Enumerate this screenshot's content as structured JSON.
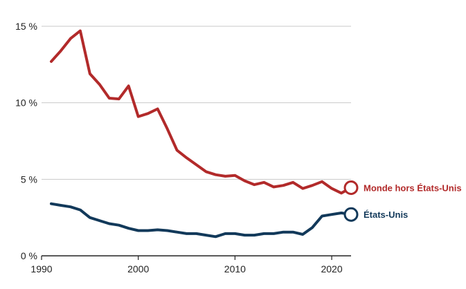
{
  "chart_data": {
    "type": "line",
    "xlim": [
      1990,
      2022
    ],
    "ylim": [
      0,
      15
    ],
    "xticks": [
      1990,
      2000,
      2010,
      2020
    ],
    "xtick_labels": [
      "1990",
      "2000",
      "2010",
      "2020"
    ],
    "yticks": [
      0,
      5,
      10,
      15
    ],
    "ytick_labels": [
      "0 %",
      "5 %",
      "10 %",
      "15 %"
    ],
    "grid": "horizontal",
    "legend": "end-of-line labels",
    "series": [
      {
        "name": "Monde hors États-Unis",
        "color": "#b22a2a",
        "x": [
          1991,
          1992,
          1993,
          1994,
          1995,
          1996,
          1997,
          1998,
          1999,
          2000,
          2001,
          2002,
          2003,
          2004,
          2005,
          2006,
          2007,
          2008,
          2009,
          2010,
          2011,
          2012,
          2013,
          2014,
          2015,
          2016,
          2017,
          2018,
          2019,
          2020,
          2021,
          2022
        ],
        "values": [
          12.7,
          13.4,
          14.2,
          14.7,
          11.9,
          11.2,
          10.3,
          10.25,
          11.1,
          9.1,
          9.3,
          9.6,
          8.3,
          6.9,
          6.4,
          5.95,
          5.5,
          5.3,
          5.2,
          5.25,
          4.9,
          4.65,
          4.8,
          4.5,
          4.6,
          4.8,
          4.4,
          4.6,
          4.85,
          4.4,
          4.1,
          4.45
        ]
      },
      {
        "name": "États-Unis",
        "color": "#12395a",
        "x": [
          1991,
          1992,
          1993,
          1994,
          1995,
          1996,
          1997,
          1998,
          1999,
          2000,
          2001,
          2002,
          2003,
          2004,
          2005,
          2006,
          2007,
          2008,
          2009,
          2010,
          2011,
          2012,
          2013,
          2014,
          2015,
          2016,
          2017,
          2018,
          2019,
          2020,
          2021,
          2022
        ],
        "values": [
          3.4,
          3.3,
          3.2,
          3.0,
          2.5,
          2.3,
          2.1,
          2.0,
          1.8,
          1.65,
          1.65,
          1.7,
          1.65,
          1.55,
          1.45,
          1.45,
          1.35,
          1.25,
          1.45,
          1.45,
          1.35,
          1.35,
          1.45,
          1.45,
          1.55,
          1.55,
          1.4,
          1.85,
          2.6,
          2.7,
          2.8,
          2.7
        ]
      }
    ]
  }
}
